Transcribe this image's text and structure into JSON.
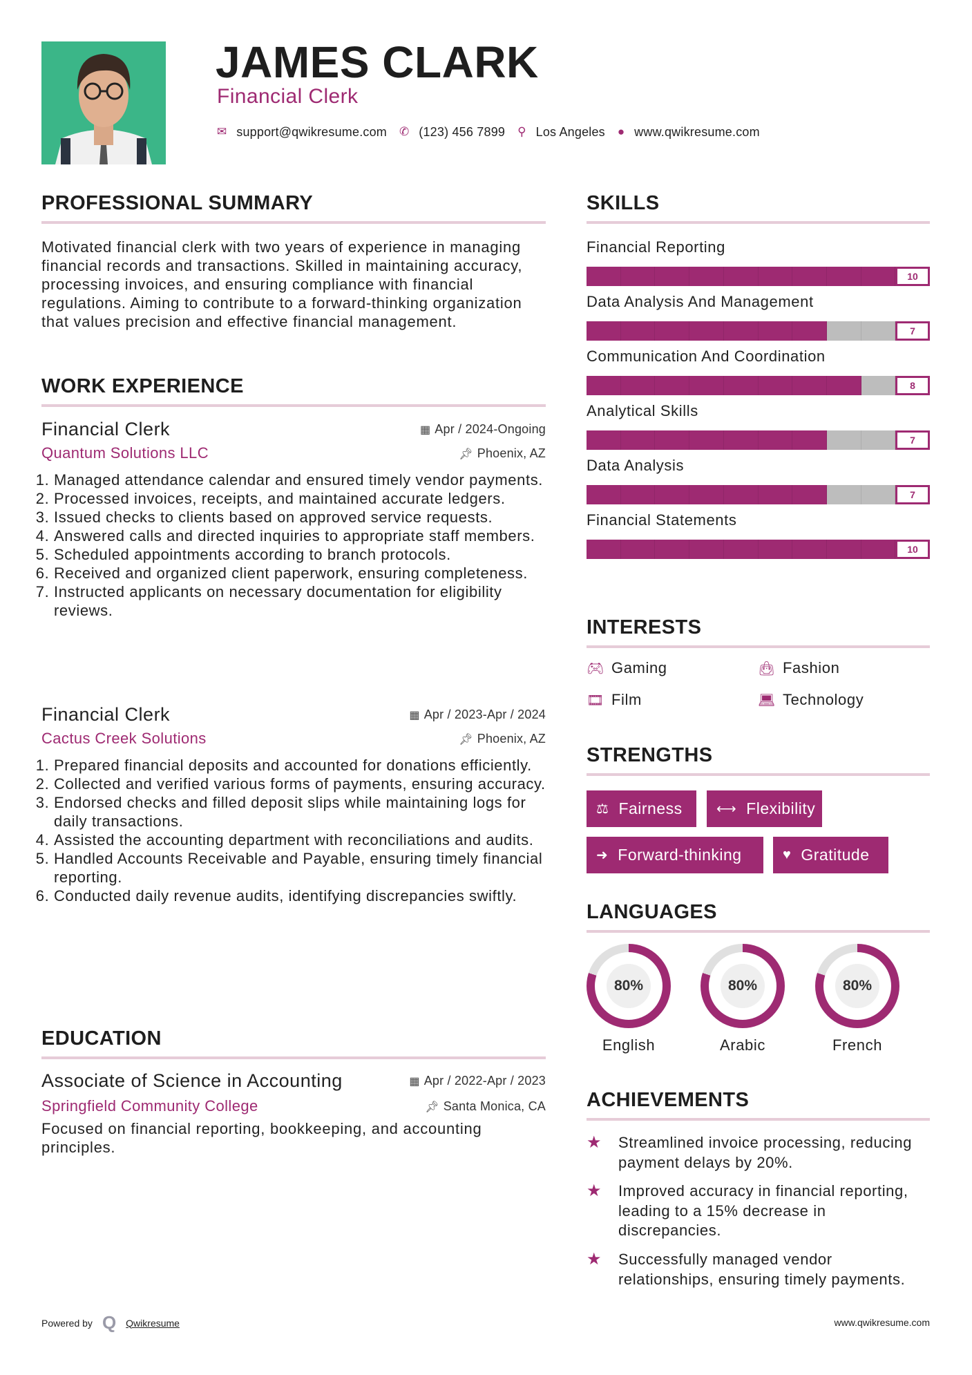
{
  "header": {
    "name": "JAMES CLARK",
    "title": "Financial Clerk",
    "contact": {
      "email": "support@qwikresume.com",
      "phone": "(123) 456 7899",
      "location": "Los Angeles",
      "website": "www.qwikresume.com"
    }
  },
  "colors": {
    "accent": "#9e2a72",
    "bar_empty": "#bdbdbd",
    "rule": "#e6ccd8",
    "photo_bg": "#3bb688"
  },
  "summary": {
    "heading": "PROFESSIONAL SUMMARY",
    "text": "Motivated financial clerk with two years of experience in managing financial records and transactions. Skilled in maintaining accuracy, processing invoices, and ensuring compliance with financial regulations. Aiming to contribute to a forward-thinking organization that values precision and effective financial management."
  },
  "experience": {
    "heading": "WORK EXPERIENCE",
    "jobs": [
      {
        "title": "Financial Clerk",
        "date": "Apr / 2024-Ongoing",
        "company": "Quantum Solutions LLC",
        "location": "Phoenix, AZ",
        "items": [
          "Managed attendance calendar and ensured timely vendor payments.",
          "Processed invoices, receipts, and maintained accurate ledgers.",
          "Issued checks to clients based on approved service requests.",
          "Answered calls and directed inquiries to appropriate staff members.",
          "Scheduled appointments according to branch protocols.",
          "Received and organized client paperwork, ensuring completeness.",
          "Instructed applicants on necessary documentation for eligibility reviews."
        ]
      },
      {
        "title": "Financial Clerk",
        "date": "Apr / 2023-Apr / 2024",
        "company": "Cactus Creek Solutions",
        "location": "Phoenix, AZ",
        "items": [
          "Prepared financial deposits and accounted for donations efficiently.",
          "Collected and verified various forms of payments, ensuring accuracy.",
          "Endorsed checks and filled deposit slips while maintaining logs for daily transactions.",
          "Assisted the accounting department with reconciliations and audits.",
          "Handled Accounts Receivable and Payable, ensuring timely financial reporting.",
          "Conducted daily revenue audits, identifying discrepancies swiftly."
        ]
      }
    ]
  },
  "education": {
    "heading": "EDUCATION",
    "degree": "Associate of Science in Accounting",
    "date": "Apr / 2022-Apr / 2023",
    "school": "Springfield Community College",
    "location": "Santa Monica, CA",
    "text": "Focused on financial reporting, bookkeeping, and accounting principles."
  },
  "skills": {
    "heading": "SKILLS",
    "max": 10,
    "items": [
      {
        "name": "Financial Reporting",
        "level": 10
      },
      {
        "name": "Data Analysis And Management",
        "level": 7
      },
      {
        "name": "Communication And Coordination",
        "level": 8
      },
      {
        "name": "Analytical Skills",
        "level": 7
      },
      {
        "name": "Data Analysis",
        "level": 7
      },
      {
        "name": "Financial Statements",
        "level": 10
      }
    ]
  },
  "interests": {
    "heading": "INTERESTS",
    "items": [
      {
        "label": "Gaming",
        "icon": "gamepad-icon"
      },
      {
        "label": "Fashion",
        "icon": "shopping-bag-icon"
      },
      {
        "label": "Film",
        "icon": "film-icon"
      },
      {
        "label": "Technology",
        "icon": "laptop-icon"
      }
    ]
  },
  "strengths": {
    "heading": "STRENGTHS",
    "items": [
      {
        "label": "Fairness",
        "icon": "balance-scale-icon"
      },
      {
        "label": "Flexibility",
        "icon": "arrows-horizontal-icon"
      },
      {
        "label": "Forward-thinking",
        "icon": "arrow-right-icon"
      },
      {
        "label": "Gratitude",
        "icon": "heart-icon"
      }
    ]
  },
  "languages": {
    "heading": "LANGUAGES",
    "items": [
      {
        "name": "English",
        "percent": "80%",
        "value": 80
      },
      {
        "name": "Arabic",
        "percent": "80%",
        "value": 80
      },
      {
        "name": "French",
        "percent": "80%",
        "value": 80
      }
    ]
  },
  "achievements": {
    "heading": "ACHIEVEMENTS",
    "icon": "shooting-star-icon",
    "items": [
      "Streamlined invoice processing, reducing payment delays by 20%.",
      "Improved accuracy in financial reporting, leading to a 15% decrease in discrepancies.",
      "Successfully managed vendor relationships, ensuring timely payments."
    ]
  },
  "footer": {
    "powered_by": "Powered by",
    "brand": "Qwikresume",
    "website": "www.qwikresume.com"
  }
}
